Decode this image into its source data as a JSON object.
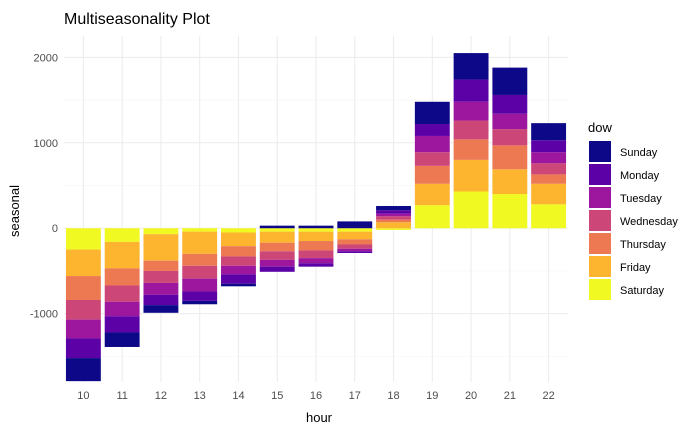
{
  "chart_data": {
    "type": "bar",
    "stacked": true,
    "title": "Multiseasonality Plot",
    "xlabel": "hour",
    "ylabel": "seasonal",
    "ylim": [
      -1800,
      2250
    ],
    "yticks": [
      -1000,
      0,
      1000,
      2000
    ],
    "grid": true,
    "legend_position": "right",
    "legend_title": "dow",
    "categories": [
      "10",
      "11",
      "12",
      "13",
      "14",
      "15",
      "16",
      "17",
      "18",
      "19",
      "20",
      "21",
      "22"
    ],
    "series": [
      {
        "name": "Sunday",
        "color": "#0d0887",
        "values": [
          -270,
          -170,
          -90,
          -40,
          -30,
          30,
          30,
          80,
          50,
          260,
          310,
          320,
          200
        ]
      },
      {
        "name": "Monday",
        "color": "#5c01a6",
        "values": [
          -230,
          -190,
          -120,
          -110,
          -110,
          -60,
          -40,
          -20,
          40,
          140,
          260,
          220,
          140
        ]
      },
      {
        "name": "Tuesday",
        "color": "#9c179e",
        "values": [
          -220,
          -170,
          -140,
          -150,
          -100,
          -80,
          -60,
          -30,
          30,
          190,
          220,
          180,
          130
        ]
      },
      {
        "name": "Wednesday",
        "color": "#cc4778",
        "values": [
          -230,
          -190,
          -140,
          -150,
          -110,
          -100,
          -90,
          -50,
          40,
          160,
          220,
          190,
          130
        ]
      },
      {
        "name": "Thursday",
        "color": "#ed7953",
        "values": [
          -280,
          -200,
          -120,
          -140,
          -120,
          -100,
          -110,
          -60,
          30,
          210,
          240,
          280,
          110
        ]
      },
      {
        "name": "Friday",
        "color": "#fdb42f",
        "values": [
          -310,
          -310,
          -310,
          -260,
          -160,
          -130,
          -110,
          -90,
          70,
          250,
          370,
          290,
          240
        ]
      },
      {
        "name": "Saturday",
        "color": "#f0f921",
        "values": [
          -250,
          -160,
          -70,
          -40,
          -50,
          -40,
          -40,
          -40,
          -20,
          270,
          430,
          400,
          280
        ]
      }
    ]
  }
}
